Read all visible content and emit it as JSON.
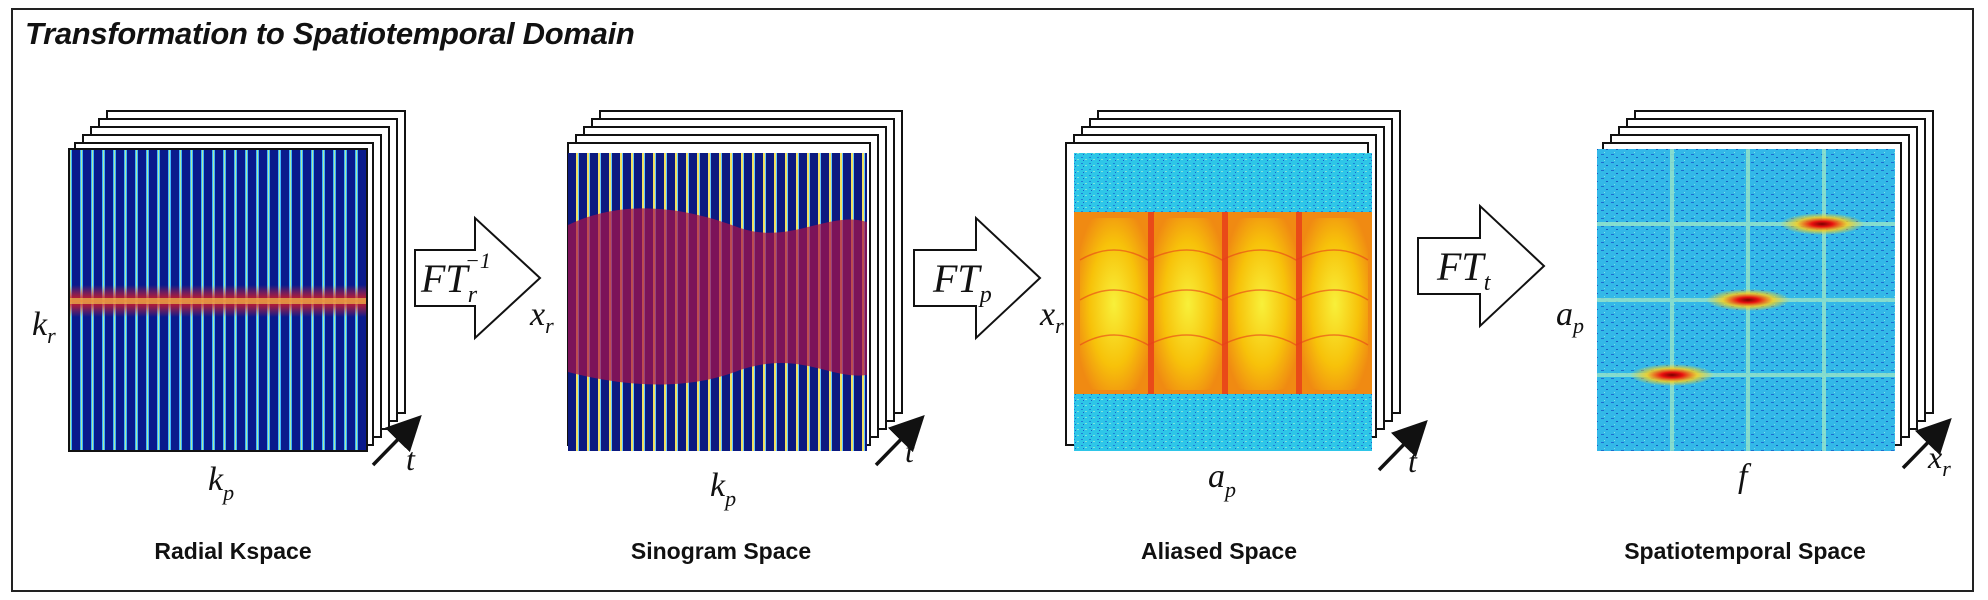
{
  "title": "Transformation to Spatiotemporal Domain",
  "panels": [
    {
      "name": "Radial Kspace",
      "vertical_axis": "k",
      "vertical_sub": "r",
      "horizontal_axis": "k",
      "horizontal_sub": "p",
      "stack_axis": "t",
      "stack_sub": ""
    },
    {
      "name": "Sinogram Space",
      "vertical_axis": "x",
      "vertical_sub": "r",
      "horizontal_axis": "k",
      "horizontal_sub": "p",
      "stack_axis": "t",
      "stack_sub": ""
    },
    {
      "name": "Aliased Space",
      "vertical_axis": "x",
      "vertical_sub": "r",
      "horizontal_axis": "a",
      "horizontal_sub": "p",
      "stack_axis": "t",
      "stack_sub": ""
    },
    {
      "name": "Spatiotemporal Space",
      "vertical_axis": "a",
      "vertical_sub": "p",
      "horizontal_axis": "f",
      "horizontal_sub": "",
      "stack_axis": "x",
      "stack_sub": "r"
    }
  ],
  "transforms": [
    {
      "label": "FT",
      "sub": "r",
      "sup": "−1"
    },
    {
      "label": "FT",
      "sub": "p",
      "sup": ""
    },
    {
      "label": "FT",
      "sub": "t",
      "sup": ""
    }
  ],
  "colors": {
    "kspace_bg": "#0a1a8c",
    "kspace_line": "#3fb3ff",
    "kspace_peak": "#c8e040",
    "sinogram_band": "#b0104a",
    "aliased_bg": "#2ec6e8",
    "aliased_band": "#f7c20a",
    "aliased_hot": "#e8401a",
    "spatio_bg": "#33b8e8",
    "spatio_peak": "#d81010",
    "frame": "#222222"
  }
}
